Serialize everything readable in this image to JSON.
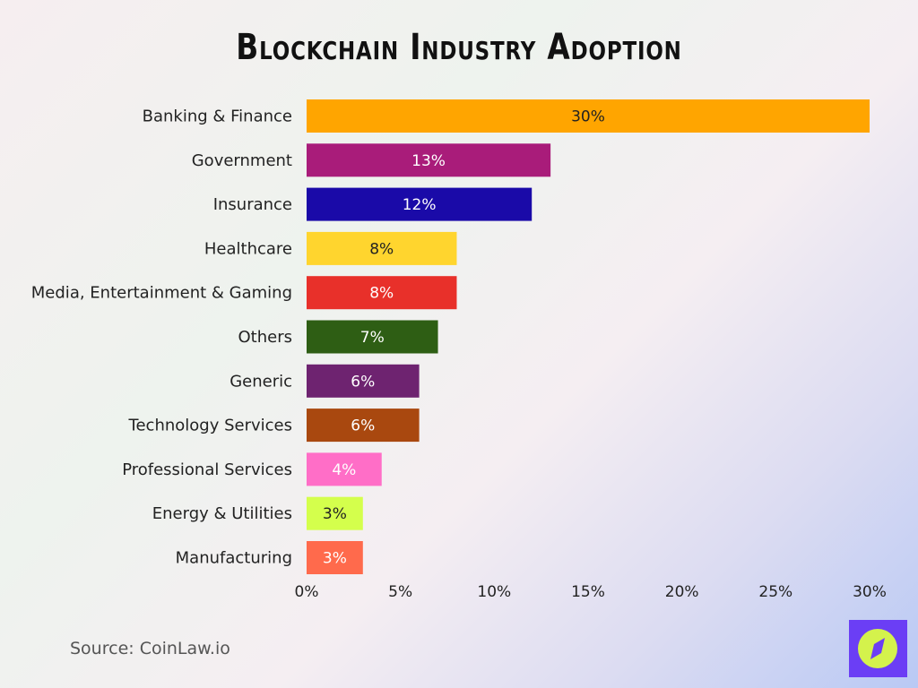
{
  "chart_data": {
    "type": "bar",
    "orientation": "horizontal",
    "title": "Blockchain Industry Adoption",
    "categories": [
      "Banking & Finance",
      "Government",
      "Insurance",
      "Healthcare",
      "Media, Entertainment & Gaming",
      "Others",
      "Generic",
      "Technology Services",
      "Professional Services",
      "Energy & Utilities",
      "Manufacturing"
    ],
    "values": [
      30,
      13,
      12,
      8,
      8,
      7,
      6,
      6,
      4,
      3,
      3
    ],
    "data_labels": [
      "30%",
      "13%",
      "12%",
      "8%",
      "8%",
      "7%",
      "6%",
      "6%",
      "4%",
      "3%",
      "3%"
    ],
    "colors": [
      "#ffa500",
      "#a91c7a",
      "#1a0aa8",
      "#ffd52e",
      "#e8302a",
      "#2e5e14",
      "#6e2370",
      "#a9480f",
      "#ff6ec7",
      "#d4ff4c",
      "#ff6a4c"
    ],
    "label_colors": [
      "#222",
      "#fff",
      "#fff",
      "#222",
      "#fff",
      "#fff",
      "#fff",
      "#fff",
      "#fff",
      "#222",
      "#fff"
    ],
    "xlim": [
      0,
      30
    ],
    "xticks": [
      "0%",
      "5%",
      "10%",
      "15%",
      "20%",
      "25%",
      "30%"
    ],
    "grid": false,
    "xlabel": "",
    "ylabel": ""
  },
  "source": "Source: CoinLaw.io",
  "logo": {
    "icon": "compass-icon",
    "bg": "#6b3ef5",
    "fg": "#d4f24c"
  }
}
